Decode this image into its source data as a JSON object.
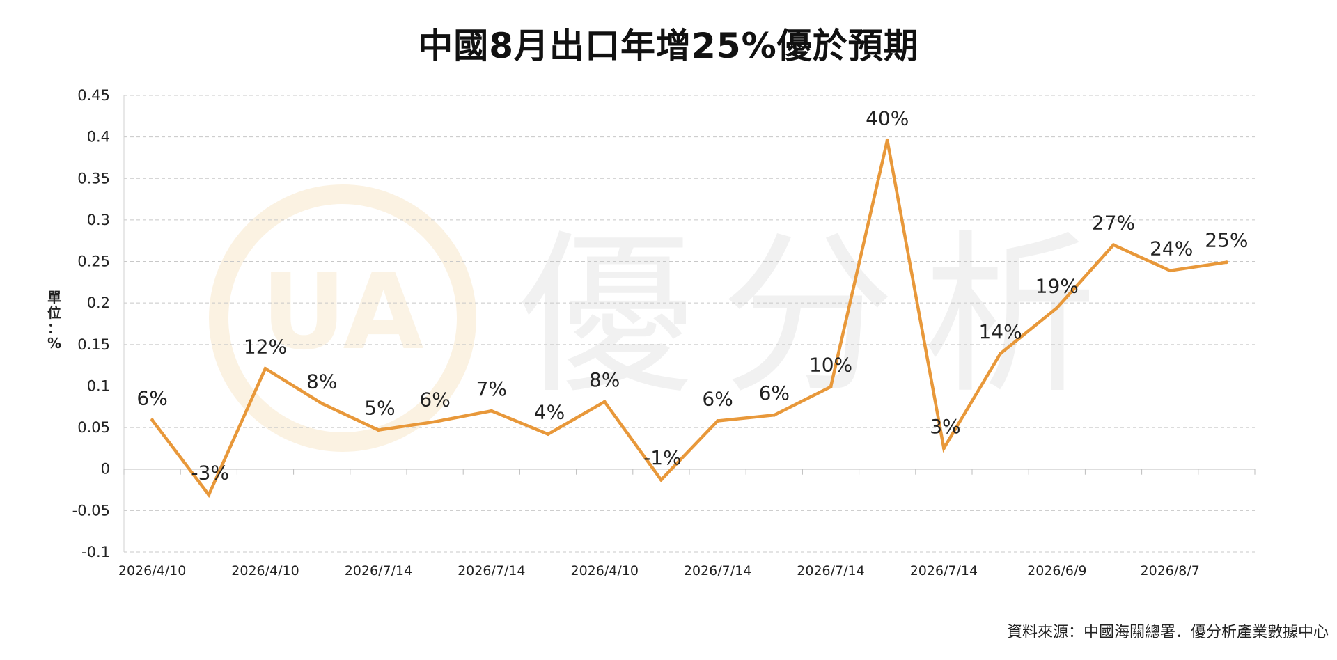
{
  "page": {
    "title": "中國8月出口年增25%優於預期",
    "source": "資料來源：中國海關總署．優分析產業數據中心",
    "watermark_text": "優分析"
  },
  "colors": {
    "line": "#E8983A",
    "watermark": "#f1f1f1",
    "watermark_ring": "#fbf2e2",
    "grid": "#c8c8c8",
    "text": "#222222"
  },
  "chart_data": {
    "type": "line",
    "title": "中國8月出口年增25%優於預期",
    "ylabel": "單位：%",
    "xlabel": "",
    "ylim": [
      -0.1,
      0.45
    ],
    "yticks": [
      -0.1,
      -0.05,
      0,
      0.05,
      0.1,
      0.15,
      0.2,
      0.25,
      0.3,
      0.35,
      0.4,
      0.45
    ],
    "ytick_labels": [
      "-0.1",
      "-0.05",
      "0",
      "0.05",
      "0.1",
      "0.15",
      "0.2",
      "0.25",
      "0.3",
      "0.35",
      "0.4",
      "0.45"
    ],
    "x_tick_labels": [
      "2026/4/10",
      "2026/4/10",
      "2026/7/14",
      "2026/7/14",
      "2026/4/10",
      "2026/7/14",
      "2026/7/14",
      "2026/7/14",
      "2026/6/9",
      "2026/8/7"
    ],
    "grid": true,
    "legend": "none",
    "series": [
      {
        "values": [
          0.059,
          -0.031,
          0.121,
          0.079,
          0.047,
          0.057,
          0.07,
          0.042,
          0.081,
          -0.013,
          0.058,
          0.065,
          0.099,
          0.396,
          0.025,
          0.139,
          0.194,
          0.27,
          0.239,
          0.249
        ],
        "labels": [
          "6%",
          "-3%",
          "12%",
          "8%",
          "5%",
          "6%",
          "7%",
          "4%",
          "8%",
          "-1%",
          "6%",
          "6%",
          "10%",
          "40%",
          "3%",
          "14%",
          "19%",
          "27%",
          "24%",
          "25%"
        ]
      }
    ]
  }
}
